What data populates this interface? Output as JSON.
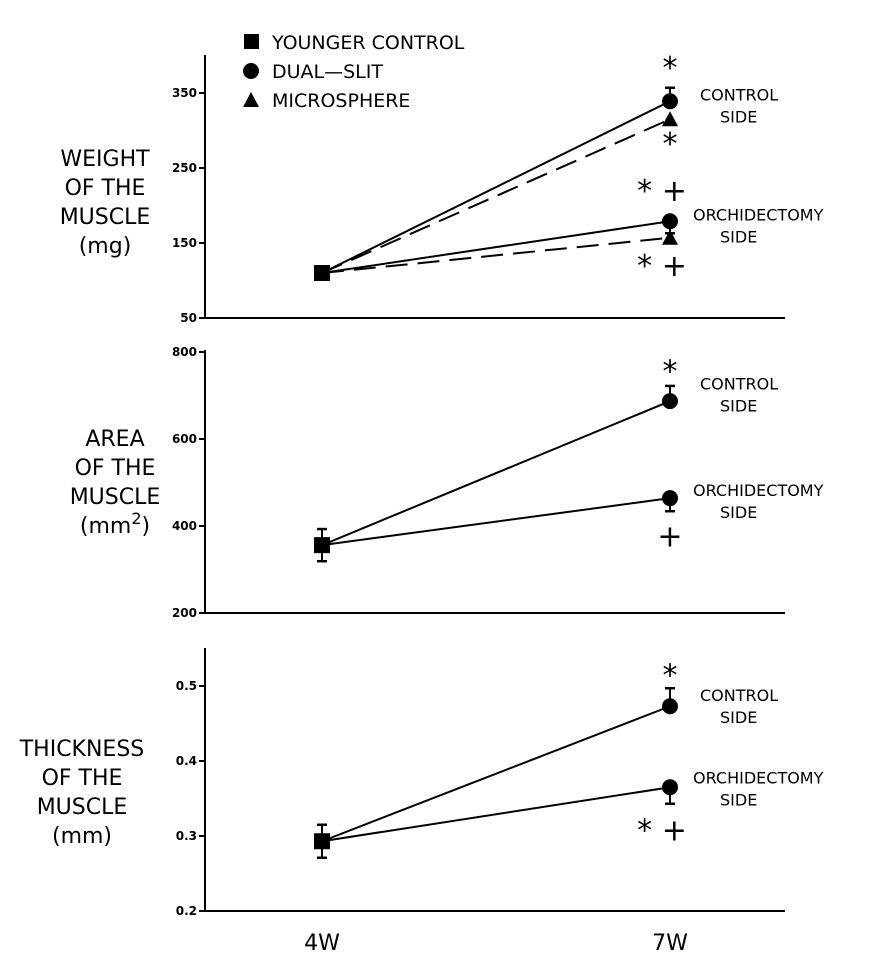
{
  "chart_data": [
    {
      "type": "line",
      "ylabel_lines": [
        "WEIGHT",
        "OF THE",
        "MUSCLE",
        "(mg)"
      ],
      "ylim": [
        50,
        400
      ],
      "yticks": [
        50,
        150,
        250,
        350
      ],
      "categories": [
        "4W",
        "7W"
      ],
      "series": [
        {
          "name": "Dual-slit control side",
          "marker": "circle",
          "dash": false,
          "values": [
            110,
            339
          ],
          "errors": [
            6,
            18
          ]
        },
        {
          "name": "Microsphere control side",
          "marker": "triangle",
          "dash": true,
          "values": [
            110,
            315
          ],
          "errors": [
            6,
            6
          ]
        },
        {
          "name": "Dual-slit orchidectomy side",
          "marker": "circle",
          "dash": false,
          "values": [
            110,
            179
          ],
          "errors": [
            6,
            16
          ]
        },
        {
          "name": "Microsphere orchidectomy side",
          "marker": "triangle",
          "dash": true,
          "values": [
            110,
            157
          ],
          "errors": [
            6,
            5
          ]
        }
      ],
      "side_labels": [
        {
          "lines": [
            "CONTROL",
            "SIDE"
          ],
          "near_value": 335
        },
        {
          "lines": [
            "ORCHIDECTOMY",
            "SIDE"
          ],
          "near_value": 175
        }
      ],
      "annotations": [
        {
          "text": "*",
          "value": 386
        },
        {
          "text": "*",
          "value": 285
        },
        {
          "text": "* +",
          "value": 222
        },
        {
          "text": "* +",
          "value": 122
        }
      ]
    },
    {
      "type": "line",
      "ylabel_lines": [
        "AREA",
        "OF THE",
        "MUSCLE",
        "(mm2)"
      ],
      "ylim": [
        200,
        800
      ],
      "yticks": [
        200,
        400,
        600,
        800
      ],
      "categories": [
        "4W",
        "7W"
      ],
      "series": [
        {
          "name": "Dual-slit control side",
          "marker": "circle",
          "dash": false,
          "values": [
            356,
            687
          ],
          "errors": [
            37,
            35
          ]
        },
        {
          "name": "Dual-slit orchidectomy side",
          "marker": "circle",
          "dash": false,
          "values": [
            356,
            464
          ],
          "errors": [
            37,
            30
          ]
        }
      ],
      "side_labels": [
        {
          "lines": [
            "CONTROL",
            "SIDE"
          ],
          "near_value": 705
        },
        {
          "lines": [
            "ORCHIDECTOMY",
            "SIDE"
          ],
          "near_value": 460
        }
      ],
      "annotations": [
        {
          "text": "*",
          "value": 760
        },
        {
          "text": "+",
          "value": 380
        }
      ]
    },
    {
      "type": "line",
      "ylabel_lines": [
        "THICKNESS",
        "OF THE",
        "MUSCLE",
        "(mm)"
      ],
      "ylim": [
        0.2,
        0.55
      ],
      "yticks": [
        0.2,
        0.3,
        0.4,
        0.5
      ],
      "categories": [
        "4W",
        "7W"
      ],
      "series": [
        {
          "name": "Dual-slit control side",
          "marker": "circle",
          "dash": false,
          "values": [
            0.293,
            0.473
          ],
          "errors": [
            0.022,
            0.024
          ]
        },
        {
          "name": "Dual-slit orchidectomy side",
          "marker": "circle",
          "dash": false,
          "values": [
            0.293,
            0.365
          ],
          "errors": [
            0.022,
            0.022
          ]
        }
      ],
      "side_labels": [
        {
          "lines": [
            "CONTROL",
            "SIDE"
          ],
          "near_value": 0.475
        },
        {
          "lines": [
            "ORCHIDECTOMY",
            "SIDE"
          ],
          "near_value": 0.365
        }
      ],
      "annotations": [
        {
          "text": "*",
          "value": 0.517
        },
        {
          "text": "* +",
          "value": 0.31
        }
      ]
    }
  ],
  "legend": {
    "placement": "top-left",
    "items": [
      {
        "marker": "square",
        "label": "YOUNGER CONTROL"
      },
      {
        "marker": "circle",
        "label": "DUAL—SLIT"
      },
      {
        "marker": "triangle",
        "label": "MICROSPHERE"
      }
    ]
  },
  "xtick_labels": [
    "4W",
    "7W"
  ],
  "colors": {
    "ink": "#000000",
    "background": "#ffffff"
  }
}
